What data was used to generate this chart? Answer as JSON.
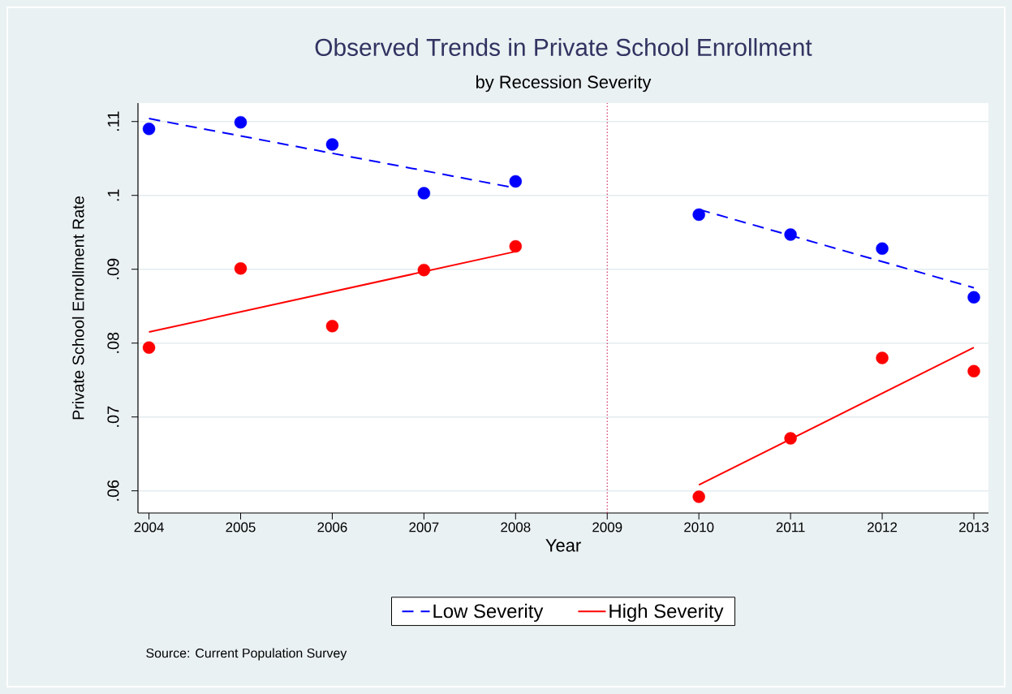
{
  "chart_data": {
    "type": "scatter",
    "marker": "circle",
    "title": "Observed Trends in Private School Enrollment",
    "subtitle": "by Recession Severity",
    "xlabel": "Year",
    "ylabel": "Private School Enrollment Rate",
    "annotations": [
      "Source: Current Population Survey"
    ],
    "x": [
      2004,
      2005,
      2006,
      2007,
      2008,
      2010,
      2011,
      2012,
      2013
    ],
    "series": [
      {
        "color": "#0000ff",
        "values": [
          0.109,
          0.1099,
          0.1069,
          0.1003,
          0.1019,
          0.0974,
          0.0947,
          0.0928,
          0.0862
        ]
      },
      {
        "color": "#ff0000",
        "values": [
          0.0794,
          0.0901,
          0.0823,
          0.0899,
          0.0931,
          0.0592,
          0.0671,
          0.078,
          0.0762
        ]
      },
      {
        "type": "line",
        "marker": "none",
        "name": "Low Severity",
        "color": "#0000ff",
        "line_style": "dashed",
        "x": [
          2004,
          2008,
          2009,
          2010,
          2013
        ],
        "values": [
          0.1104,
          0.101,
          null,
          0.0981,
          0.0875
        ]
      },
      {
        "type": "line",
        "marker": "none",
        "name": "High Severity",
        "color": "#ff0000",
        "line_style": "solid",
        "x": [
          2004,
          2008,
          2009,
          2010,
          2013
        ],
        "values": [
          0.0815,
          0.0924,
          null,
          0.0608,
          0.0794
        ]
      }
    ],
    "xlim": [
      2003.88,
      2013.16
    ],
    "ylim": [
      0.057,
      0.1125
    ],
    "xticks": [
      2004,
      2005,
      2006,
      2007,
      2008,
      2009,
      2010,
      2011,
      2012,
      2013
    ],
    "yticks": [
      {
        "value": 0.06,
        "label": ".06"
      },
      {
        "value": 0.07,
        "label": ".07"
      },
      {
        "value": 0.08,
        "label": ".08"
      },
      {
        "value": 0.09,
        "label": ".09"
      },
      {
        "value": 0.1,
        "label": ".1"
      },
      {
        "value": 0.11,
        "label": ".11"
      }
    ],
    "ref_lines": [
      {
        "axis": "x",
        "value": 2009,
        "color": "#cc3366",
        "line_style": "dotted"
      }
    ],
    "grid": "y",
    "legend": "bottom"
  }
}
